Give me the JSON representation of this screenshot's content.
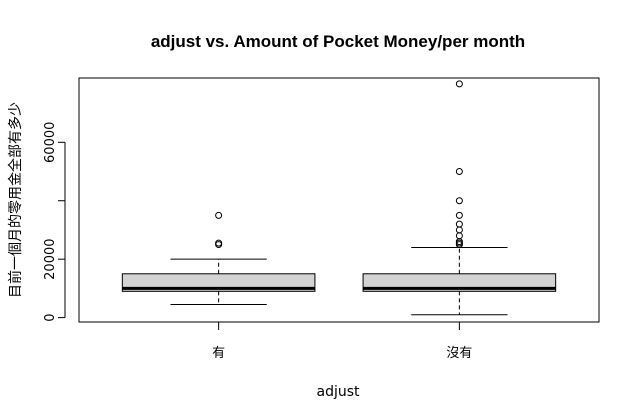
{
  "chart_data": {
    "type": "boxplot",
    "title": "adjust vs. Amount of Pocket Money/per month",
    "xlabel": "adjust",
    "ylabel": "目前一個月的零用金全部有多少",
    "ylim": [
      -1500,
      82000
    ],
    "yticks": [
      0,
      20000,
      40000,
      60000
    ],
    "ytick_labels": [
      "0",
      "20000",
      "",
      "60000"
    ],
    "grid": false,
    "legend": "none",
    "colors": {
      "box_fill": "#d3d3d3",
      "stroke": "#000000"
    },
    "categories": [
      "有",
      "沒有"
    ],
    "boxes": [
      {
        "category": "有",
        "whisker_low": 4500,
        "q1": 9000,
        "median": 10000,
        "q3": 15000,
        "whisker_high": 20000,
        "outliers": [
          25000,
          25500,
          35000
        ]
      },
      {
        "category": "沒有",
        "whisker_low": 1000,
        "q1": 9000,
        "median": 10000,
        "q3": 15000,
        "whisker_high": 24000,
        "outliers": [
          25000,
          25500,
          26000,
          28000,
          30000,
          32000,
          35000,
          40000,
          50000,
          80000
        ]
      }
    ]
  }
}
